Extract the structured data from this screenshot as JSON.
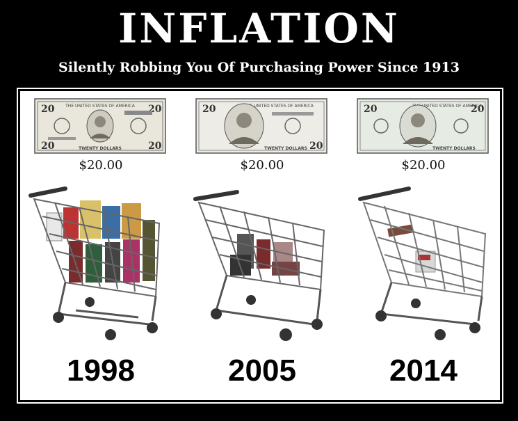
{
  "poster": {
    "title": "INFLATION",
    "subtitle": "Silently Robbing You Of Purchasing Power Since 1913"
  },
  "columns": [
    {
      "price": "$20.00",
      "year": "1998",
      "cart_fill": "full"
    },
    {
      "price": "$20.00",
      "year": "2005",
      "cart_fill": "half"
    },
    {
      "price": "$20.00",
      "year": "2014",
      "cart_fill": "nearly empty"
    }
  ],
  "bill_text": {
    "denomination": "20",
    "bank_label": "THE UNITED STATES OF AMERICA",
    "footer_label": "TWENTY DOLLARS"
  },
  "colors": {
    "background": "#000000",
    "panel": "#ffffff",
    "text_dark": "#111111"
  },
  "icons": [
    "twenty-dollar-bill-icon",
    "shopping-cart-icon"
  ]
}
